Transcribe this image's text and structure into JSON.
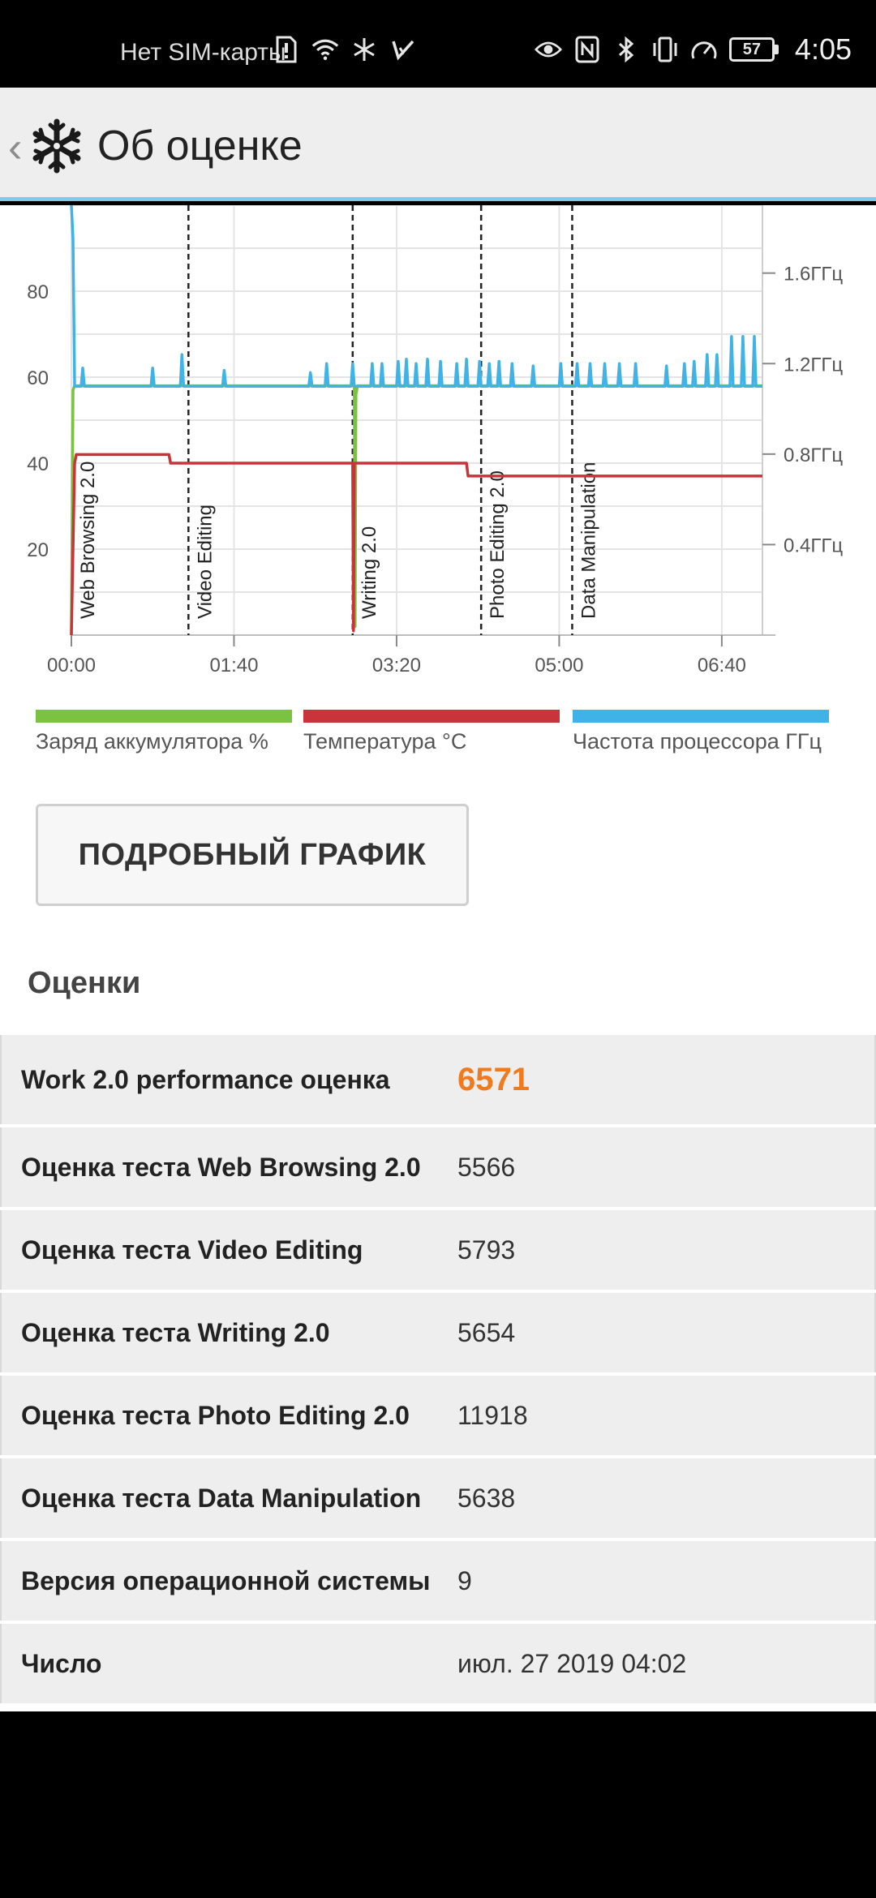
{
  "status_bar": {
    "carrier": "Нет SIM-карты",
    "battery_level": "57",
    "time": "4:05",
    "icons_left": [
      "sim-alert-icon",
      "wifi-icon",
      "snowflake-icon",
      "check-icon"
    ],
    "icons_right": [
      "eye-icon",
      "nfc-icon",
      "bluetooth-icon",
      "vibrate-icon",
      "speedometer-icon"
    ]
  },
  "app_bar": {
    "title": "Об оценке",
    "back_icon": "chevron-left-icon",
    "logo_icon": "snowflake-logo-icon"
  },
  "chart_data": {
    "type": "line",
    "x_unit": "mm:ss",
    "xlim": [
      0,
      425
    ],
    "x_ticks": [
      {
        "value": 0,
        "label": "00:00"
      },
      {
        "value": 100,
        "label": "01:40"
      },
      {
        "value": 200,
        "label": "03:20"
      },
      {
        "value": 300,
        "label": "05:00"
      },
      {
        "value": 400,
        "label": "06:40"
      }
    ],
    "left_axis": {
      "ylim": [
        0,
        100
      ],
      "ticks": [
        {
          "value": 20,
          "label": "20"
        },
        {
          "value": 40,
          "label": "40"
        },
        {
          "value": 60,
          "label": "60"
        },
        {
          "value": 80,
          "label": "80"
        }
      ]
    },
    "right_axis": {
      "ylim_ghz": [
        0,
        1.9
      ],
      "ticks": [
        {
          "value": 0.4,
          "label": "0.4ГГц"
        },
        {
          "value": 0.8,
          "label": "0.8ГГц"
        },
        {
          "value": 1.2,
          "label": "1.2ГГц"
        },
        {
          "value": 1.6,
          "label": "1.6ГГц"
        }
      ]
    },
    "grid": true,
    "phases": [
      {
        "label": "Web Browsing 2.0",
        "start": 0
      },
      {
        "label": "Video Editing",
        "start": 72
      },
      {
        "label": "Writing 2.0",
        "start": 173
      },
      {
        "label": "Photo Editing 2.0",
        "start": 252
      },
      {
        "label": "Data Manipulation",
        "start": 308
      }
    ],
    "series": [
      {
        "name": "Заряд аккумулятора %",
        "color": "#7cc242",
        "axis": "left",
        "x": [
          0,
          1,
          2,
          174,
          174.5,
          175,
          176,
          425
        ],
        "y": [
          0,
          57,
          58,
          58,
          2,
          56,
          58,
          58
        ]
      },
      {
        "name": "Температура °C",
        "color": "#c9343a",
        "axis": "left",
        "x": [
          0,
          2,
          3,
          60,
          61,
          173,
          173.5,
          174,
          243,
          244,
          425
        ],
        "y": [
          0,
          40,
          42,
          42,
          40,
          40,
          1,
          40,
          40,
          37,
          37
        ]
      },
      {
        "name": "Частота процессора ГГц",
        "color": "#3fb2e6",
        "axis": "right",
        "x": [
          0,
          1,
          2,
          3,
          6,
          7,
          8,
          49,
          50,
          51,
          67,
          68,
          69,
          93,
          94,
          95,
          146,
          147,
          148,
          156,
          157,
          158,
          172,
          173,
          174,
          184,
          185,
          186,
          190,
          191,
          192,
          200,
          201,
          202,
          205,
          206,
          207,
          211,
          212,
          213,
          218,
          219,
          220,
          226,
          227,
          228,
          236,
          237,
          238,
          242,
          243,
          244,
          250,
          251,
          252,
          256,
          257,
          258,
          262,
          263,
          264,
          270,
          271,
          272,
          283,
          284,
          285,
          300,
          301,
          302,
          310,
          311,
          312,
          318,
          319,
          320,
          327,
          328,
          329,
          336,
          337,
          338,
          346,
          347,
          348,
          365,
          366,
          367,
          376,
          377,
          378,
          382,
          383,
          384,
          390,
          391,
          392,
          396,
          397,
          398,
          405,
          406,
          407,
          412,
          413,
          414,
          419,
          420,
          421,
          425
        ],
        "y": [
          1.9,
          1.75,
          1.1,
          1.1,
          1.1,
          1.18,
          1.1,
          1.1,
          1.18,
          1.1,
          1.1,
          1.24,
          1.1,
          1.1,
          1.17,
          1.1,
          1.1,
          1.16,
          1.1,
          1.1,
          1.2,
          1.1,
          1.1,
          1.2,
          1.1,
          1.1,
          1.2,
          1.1,
          1.1,
          1.2,
          1.1,
          1.1,
          1.21,
          1.1,
          1.1,
          1.22,
          1.1,
          1.1,
          1.2,
          1.1,
          1.1,
          1.22,
          1.1,
          1.1,
          1.21,
          1.1,
          1.1,
          1.2,
          1.1,
          1.1,
          1.22,
          1.1,
          1.1,
          1.21,
          1.1,
          1.1,
          1.2,
          1.1,
          1.1,
          1.21,
          1.1,
          1.1,
          1.2,
          1.1,
          1.1,
          1.19,
          1.1,
          1.1,
          1.2,
          1.1,
          1.1,
          1.2,
          1.1,
          1.1,
          1.2,
          1.1,
          1.1,
          1.2,
          1.1,
          1.1,
          1.2,
          1.1,
          1.1,
          1.2,
          1.1,
          1.1,
          1.19,
          1.1,
          1.1,
          1.2,
          1.1,
          1.1,
          1.21,
          1.1,
          1.1,
          1.24,
          1.1,
          1.1,
          1.24,
          1.1,
          1.1,
          1.32,
          1.1,
          1.1,
          1.32,
          1.1,
          1.1,
          1.32,
          1.1,
          1.1
        ]
      }
    ]
  },
  "legend": {
    "items": [
      {
        "label": "Заряд аккумулятора %",
        "color": "#7cc242"
      },
      {
        "label": "Температура °C",
        "color": "#c9343a"
      },
      {
        "label": "Частота процессора ГГц",
        "color": "#3fb2e6"
      }
    ]
  },
  "detail_button": {
    "label": "ПОДРОБНЫЙ ГРАФИК"
  },
  "scores": {
    "title": "Оценки",
    "rows": [
      {
        "label": "Work 2.0 performance оценка",
        "value": "6571"
      },
      {
        "label": "Оценка теста Web Browsing 2.0",
        "value": "5566"
      },
      {
        "label": "Оценка теста Video Editing",
        "value": "5793"
      },
      {
        "label": "Оценка теста Writing 2.0",
        "value": "5654"
      },
      {
        "label": "Оценка теста Photo Editing 2.0",
        "value": "11918"
      },
      {
        "label": "Оценка теста Data Manipulation",
        "value": "5638"
      },
      {
        "label": "Версия операционной системы",
        "value": "9"
      },
      {
        "label": "Число",
        "value": "июл. 27 2019 04:02"
      }
    ]
  },
  "colors": {
    "accent_orange": "#f07a1e",
    "appbar_underline": "#7fc8ef"
  }
}
